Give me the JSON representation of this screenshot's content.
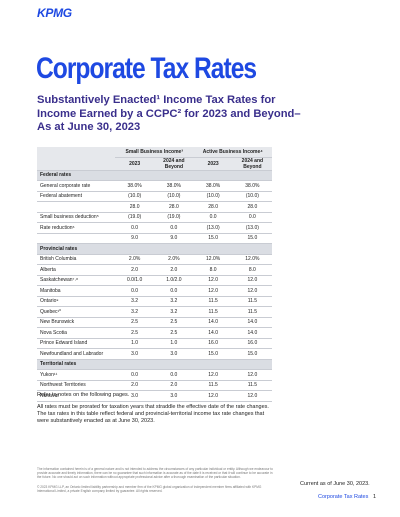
{
  "header": {
    "logo": "KPMG",
    "title": "Corporate Tax Rates",
    "subtitle": "Substantively Enacted¹ Income Tax Rates for Income Earned by a CCPC² for 2023 and Beyond–As at June 30, 2023"
  },
  "table": {
    "groups": [
      "Small Business Income³",
      "Active Business Income⁴"
    ],
    "columns": [
      "2023",
      "2024 and Beyond",
      "2023",
      "2024 and Beyond"
    ],
    "sections": [
      {
        "title": "Federal rates",
        "rows": [
          {
            "label": "General corporate rate",
            "values": [
              "38.0%",
              "38.0%",
              "38.0%",
              "38.0%"
            ]
          },
          {
            "label": "Federal abatement",
            "values": [
              "(10.0)",
              "(10.0)",
              "(10.0)",
              "(10.0)"
            ]
          },
          {
            "values": [
              "28.0",
              "28.0",
              "28.0",
              "28.0"
            ]
          },
          {
            "label": "Small business deduction⁵",
            "values": [
              "(19.0)",
              "(19.0)",
              "0.0",
              "0.0"
            ]
          },
          {
            "label": "Rate reduction⁶",
            "values": [
              "0.0",
              "0.0",
              "(13.0)",
              "(13.0)"
            ]
          },
          {
            "values": [
              "9.0",
              "9.0",
              "15.0",
              "15.0"
            ]
          }
        ]
      },
      {
        "title": "Provincial rates",
        "rows": [
          {
            "label": "British Columbia",
            "values": [
              "2.0%",
              "2.0%",
              "12.0%",
              "12.0%"
            ]
          },
          {
            "label": "Alberta",
            "values": [
              "2.0",
              "2.0",
              "8.0",
              "8.0"
            ]
          },
          {
            "label": "Saskatchewan⁷˒⁸",
            "values": [
              "0.0/1.0",
              "1.0/2.0",
              "12.0",
              "12.0"
            ]
          },
          {
            "label": "Manitoba",
            "values": [
              "0.0",
              "0.0",
              "12.0",
              "12.0"
            ]
          },
          {
            "label": "Ontario⁹",
            "values": [
              "3.2",
              "3.2",
              "11.5",
              "11.5"
            ]
          },
          {
            "label": "Quebec¹⁰",
            "values": [
              "3.2",
              "3.2",
              "11.5",
              "11.5"
            ]
          },
          {
            "label": "New Brunswick",
            "values": [
              "2.5",
              "2.5",
              "14.0",
              "14.0"
            ]
          },
          {
            "label": "Nova Scotia",
            "values": [
              "2.5",
              "2.5",
              "14.0",
              "14.0"
            ]
          },
          {
            "label": "Prince Edward Island",
            "values": [
              "1.0",
              "1.0",
              "16.0",
              "16.0"
            ]
          },
          {
            "label": "Newfoundland and Labrador",
            "values": [
              "3.0",
              "3.0",
              "15.0",
              "15.0"
            ]
          }
        ]
      },
      {
        "title": "Territorial rates",
        "rows": [
          {
            "label": "Yukon¹¹",
            "values": [
              "0.0",
              "0.0",
              "12.0",
              "12.0"
            ]
          },
          {
            "label": "Northwest Territories",
            "values": [
              "2.0",
              "2.0",
              "11.5",
              "11.5"
            ]
          },
          {
            "label": "Nunavut",
            "values": [
              "3.0",
              "3.0",
              "12.0",
              "12.0"
            ]
          }
        ]
      }
    ]
  },
  "notes": {
    "refer": "Refer to notes on the following pages.",
    "prorate": "All rates must be prorated for taxation years that straddle the effective date of the rate changes. The tax rates in this table reflect federal and provincial-territorial income tax rate changes that were substantively enacted as at June 30, 2023."
  },
  "footer": {
    "disclaimer": "The information contained herein is of a general nature and is not intended to address the circumstances of any particular individual or entity. Although we endeavour to provide accurate and timely information, there can be no guarantee that such information is accurate as of the date it is received or that it will continue to be accurate in the future. No one should act on such information without appropriate professional advice after a thorough examination of the particular situation.",
    "copyright": "© 2023 KPMG LLP, an Ontario limited liability partnership and member firm of the KPMG global organization of independent member firms affiliated with KPMG International Limited, a private English company limited by guarantee. All rights reserved.",
    "current": "Current as of June 30, 2023.",
    "doc": "Corporate Tax Rates",
    "page": "1"
  }
}
